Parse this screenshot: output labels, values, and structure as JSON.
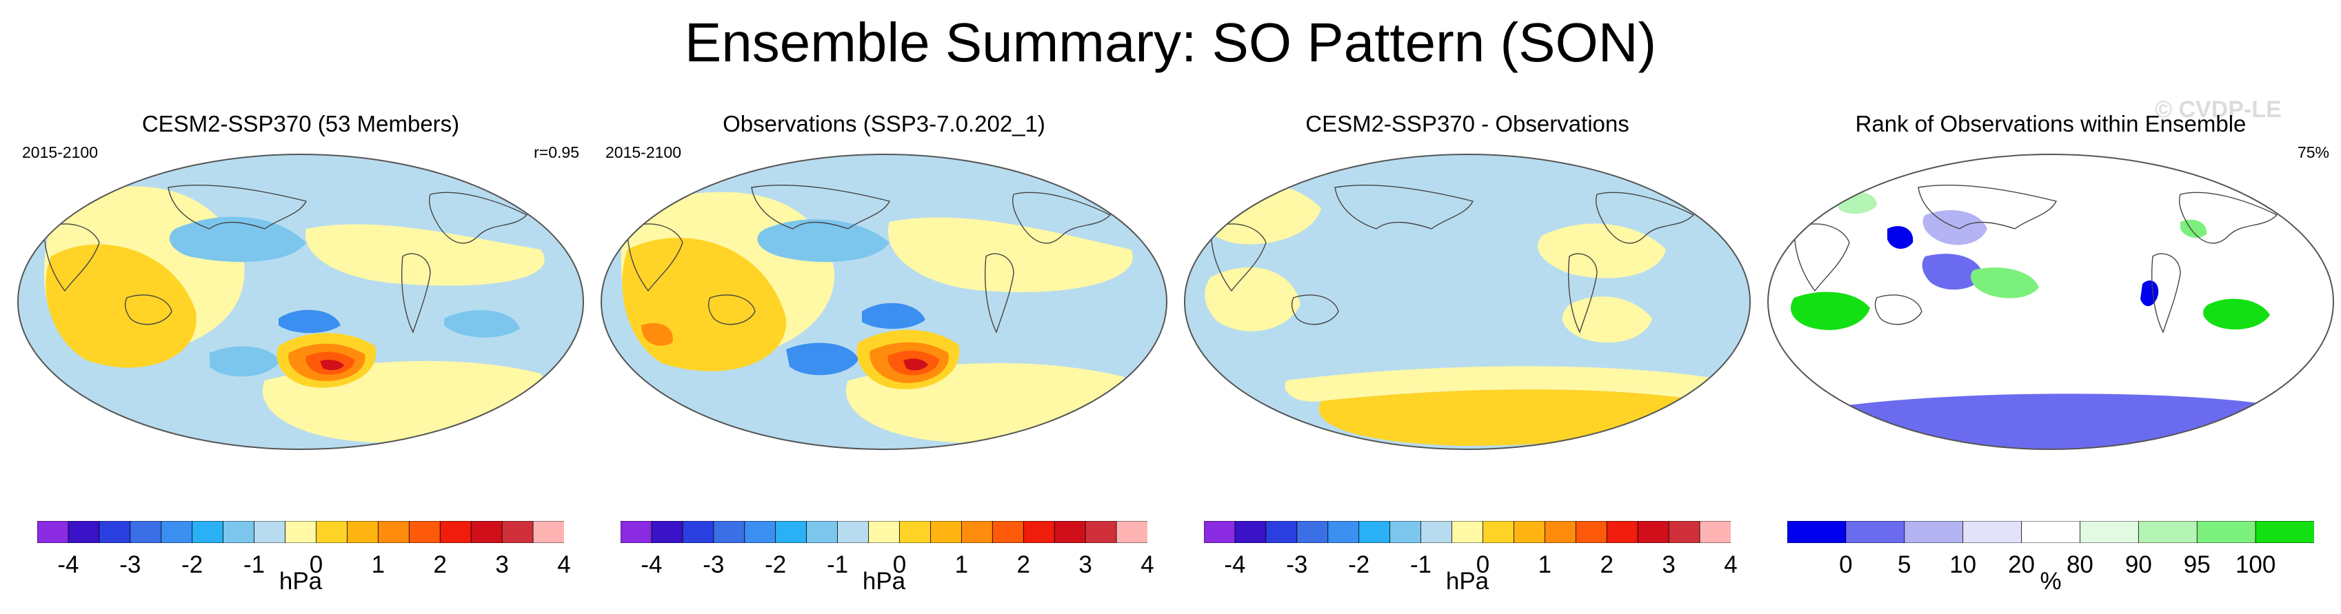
{
  "title": "Ensemble Summary: SO Pattern (SON)",
  "watermark": "© CVDP-LE",
  "panels": [
    {
      "title": "CESM2-SSP370 (53 Members)",
      "left_label": "2015-2100",
      "right_label": "r=0.95",
      "unit": "hPa",
      "colorbar": "pressure",
      "map_style": "model"
    },
    {
      "title": "Observations (SSP3-7.0.202_1)",
      "left_label": "2015-2100",
      "right_label": "",
      "unit": "hPa",
      "colorbar": "pressure",
      "map_style": "obs"
    },
    {
      "title": "CESM2-SSP370 - Observations",
      "left_label": "",
      "right_label": "",
      "unit": "hPa",
      "colorbar": "pressure",
      "map_style": "diff"
    },
    {
      "title": "Rank of Observations within Ensemble",
      "left_label": "",
      "right_label": "75%",
      "unit": "%",
      "colorbar": "rank",
      "map_style": "rank"
    }
  ],
  "colorbars": {
    "pressure": {
      "colors": [
        "#8a2be2",
        "#3a12c8",
        "#2a3fe0",
        "#3b6fe6",
        "#3b8ff0",
        "#2ab0f5",
        "#7cc6ee",
        "#b8dcef",
        "#fff8a5",
        "#ffd427",
        "#ffb412",
        "#ff8c0c",
        "#ff5a0a",
        "#f01c0c",
        "#d00f1a",
        "#d0303a",
        "#ffb4b4"
      ],
      "ticks": [
        "-4",
        "-3",
        "-2",
        "-1",
        "0",
        "1",
        "2",
        "3",
        "4"
      ],
      "tick_positions": [
        1,
        3,
        5,
        7,
        9,
        11,
        13,
        15,
        17
      ],
      "n_boxes": 18
    },
    "rank": {
      "colors": [
        "#0000ee",
        "#6b6bf0",
        "#b4b4f4",
        "#e2e2fa",
        "#ffffff",
        "#e2fae2",
        "#b4f4b4",
        "#7cf07c",
        "#12e012"
      ],
      "ticks": [
        "0",
        "5",
        "10",
        "20",
        "80",
        "90",
        "95",
        "100"
      ],
      "tick_positions": [
        1,
        2,
        3,
        4,
        5,
        6,
        7,
        8
      ],
      "n_boxes": 9
    }
  },
  "chart_data": [
    {
      "type": "heatmap",
      "title": "CESM2-SSP370 (53 Members)",
      "period": "2015-2100",
      "pattern_correlation": 0.95,
      "units": "hPa",
      "colorbar_ticks": [
        -4,
        -3,
        -2,
        -1,
        0,
        1,
        2,
        3,
        4
      ],
      "features": "positive anomaly maximum (~4 hPa) south of Australia/Pacific sector near Drake Passage; negative anomalies over mid-latitude oceans"
    },
    {
      "type": "heatmap",
      "title": "Observations (SSP3-7.0.202_1)",
      "period": "2015-2100",
      "units": "hPa",
      "colorbar_ticks": [
        -4,
        -3,
        -2,
        -1,
        0,
        1,
        2,
        3,
        4
      ]
    },
    {
      "type": "heatmap",
      "title": "CESM2-SSP370 - Observations",
      "units": "hPa",
      "colorbar_ticks": [
        -4,
        -3,
        -2,
        -1,
        0,
        1,
        2,
        3,
        4
      ],
      "features": "differences mostly within ±0.5 hPa"
    },
    {
      "type": "heatmap",
      "title": "Rank of Observations within Ensemble",
      "units": "%",
      "percent_within": 75,
      "colorbar_ticks": [
        0,
        5,
        10,
        20,
        80,
        90,
        95,
        100
      ]
    }
  ]
}
